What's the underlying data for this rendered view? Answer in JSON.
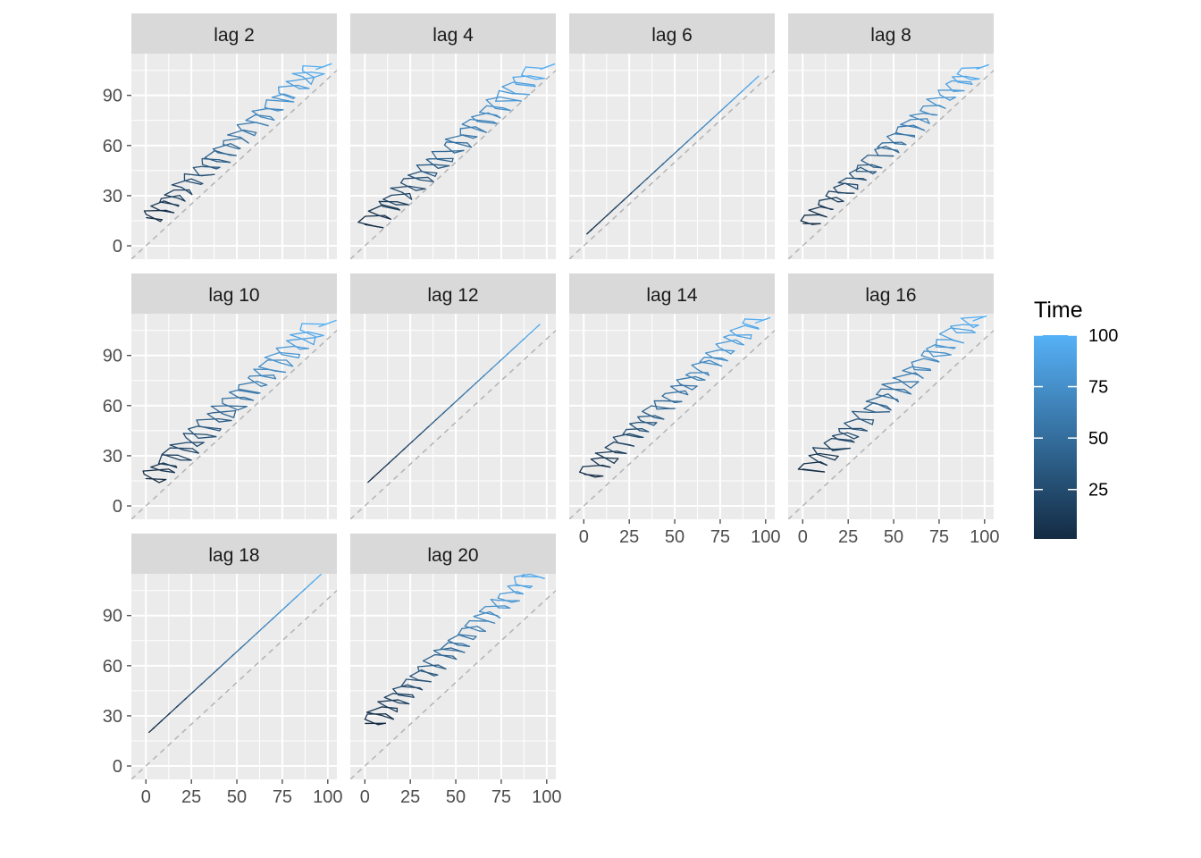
{
  "chart_data": {
    "type": "line",
    "variant": "lag plot (faceted)",
    "xlim": [
      -8,
      105
    ],
    "ylim": [
      -8,
      115
    ],
    "x_ticks": [
      0,
      25,
      50,
      75,
      100
    ],
    "y_ticks": [
      0,
      30,
      60,
      90
    ],
    "reference_line": "y = x (dashed grey)",
    "grid": true,
    "panel_background": "#ebebeb",
    "strip_background": "#d9d9d9",
    "legend": {
      "title": "Time",
      "position": "right",
      "type": "colorbar",
      "range": [
        1,
        100
      ],
      "ticks": [
        25,
        50,
        75,
        100
      ],
      "color_low": "#132b43",
      "color_high": "#56b1f7"
    },
    "series_note": "Each panel plots the series value at time t+k (y) against the value at time t (x) for the labelled lag k, coloured by time.",
    "panels": [
      {
        "label": "lag 2",
        "lag": 2,
        "pattern": "zigzag",
        "offset": 12,
        "amplitude": 7
      },
      {
        "label": "lag 4",
        "lag": 4,
        "pattern": "zigzag",
        "offset": 9,
        "amplitude": 8
      },
      {
        "label": "lag 6",
        "lag": 6,
        "pattern": "tight",
        "offset": 6,
        "amplitude": 1.2
      },
      {
        "label": "lag 8",
        "lag": 8,
        "pattern": "zigzag",
        "offset": 10,
        "amplitude": 7
      },
      {
        "label": "lag 10",
        "lag": 10,
        "pattern": "zigzag",
        "offset": 12,
        "amplitude": 8
      },
      {
        "label": "lag 12",
        "lag": 12,
        "pattern": "tight",
        "offset": 13,
        "amplitude": 1.2
      },
      {
        "label": "lag 14",
        "lag": 14,
        "pattern": "zigzag",
        "offset": 15,
        "amplitude": 7
      },
      {
        "label": "lag 16",
        "lag": 16,
        "pattern": "zigzag",
        "offset": 17,
        "amplitude": 8
      },
      {
        "label": "lag 18",
        "lag": 18,
        "pattern": "tight",
        "offset": 19,
        "amplitude": 1.2
      },
      {
        "label": "lag 20",
        "lag": 20,
        "pattern": "zigzag",
        "offset": 21,
        "amplitude": 7
      }
    ]
  }
}
